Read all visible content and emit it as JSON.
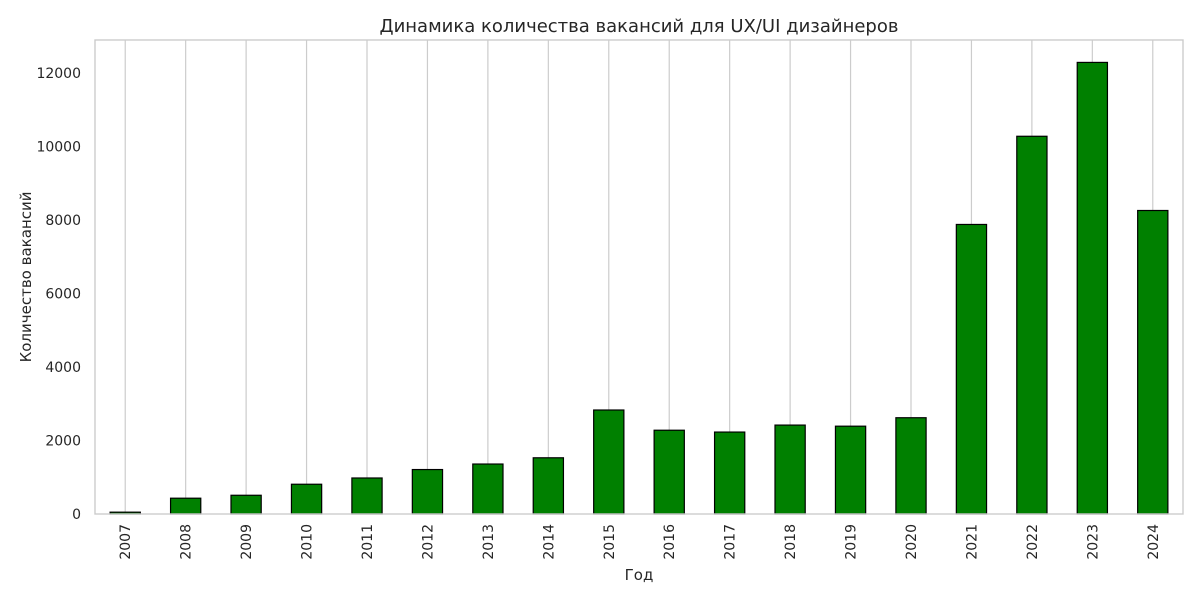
{
  "chart_data": {
    "type": "bar",
    "title": "Динамика количества вакансий для UX/UI дизайнеров",
    "xlabel": "Год",
    "ylabel": "Количество вакансий",
    "categories": [
      "2007",
      "2008",
      "2009",
      "2010",
      "2011",
      "2012",
      "2013",
      "2014",
      "2015",
      "2016",
      "2017",
      "2018",
      "2019",
      "2020",
      "2021",
      "2022",
      "2023",
      "2024"
    ],
    "values": [
      50,
      430,
      510,
      810,
      980,
      1210,
      1360,
      1530,
      2830,
      2280,
      2230,
      2420,
      2390,
      2620,
      7880,
      10280,
      12290,
      8260
    ],
    "yticks": [
      0,
      2000,
      4000,
      6000,
      8000,
      10000,
      12000
    ],
    "ylim": [
      0,
      12900
    ],
    "bar_color": "#008000",
    "edge_color": "#000000",
    "grid": "vertical"
  }
}
